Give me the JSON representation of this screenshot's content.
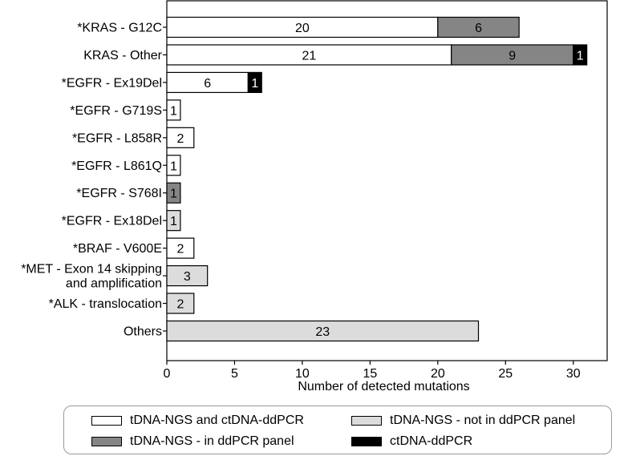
{
  "chart_data": {
    "type": "bar",
    "orientation": "horizontal",
    "stacked": true,
    "xlabel": "Number of detected mutations",
    "xlim": [
      0,
      32.5
    ],
    "xticks": [
      0,
      5,
      10,
      15,
      20,
      25,
      30
    ],
    "grid": false,
    "legend_position": "bottom",
    "categories": [
      "*KRAS - G12C",
      "KRAS - Other",
      "*EGFR - Ex19Del",
      "*EGFR - G719S",
      "*EGFR - L858R",
      "*EGFR - L861Q",
      "*EGFR - S768I",
      "*EGFR - Ex18Del",
      "*BRAF - V600E",
      "*MET - Exon 14 skipping\nand amplification",
      "*ALK - translocation",
      "Others"
    ],
    "series": [
      {
        "name": "tDNA-NGS and ctDNA-ddPCR",
        "color": "#ffffff",
        "values": [
          20,
          21,
          6,
          1,
          2,
          1,
          0,
          0,
          2,
          0,
          0,
          0
        ]
      },
      {
        "name": "tDNA-NGS - in ddPCR panel",
        "color": "#858585",
        "values": [
          6,
          9,
          0,
          0,
          0,
          0,
          1,
          0,
          0,
          0,
          0,
          0
        ]
      },
      {
        "name": "tDNA-NGS - not in ddPCR panel",
        "color": "#dcdcdc",
        "values": [
          0,
          0,
          0,
          0,
          0,
          0,
          0,
          1,
          0,
          3,
          2,
          23
        ]
      },
      {
        "name": "ctDNA-ddPCR",
        "color": "#000000",
        "values": [
          0,
          1,
          1,
          0,
          0,
          0,
          0,
          0,
          0,
          0,
          0,
          0
        ]
      }
    ]
  },
  "legend": {
    "items": [
      {
        "label": "tDNA-NGS and ctDNA-ddPCR",
        "color": "#ffffff"
      },
      {
        "label": "tDNA-NGS - not in ddPCR panel",
        "color": "#dcdcdc"
      },
      {
        "label": "tDNA-NGS - in ddPCR panel",
        "color": "#858585"
      },
      {
        "label": "ctDNA-ddPCR",
        "color": "#000000"
      }
    ]
  }
}
